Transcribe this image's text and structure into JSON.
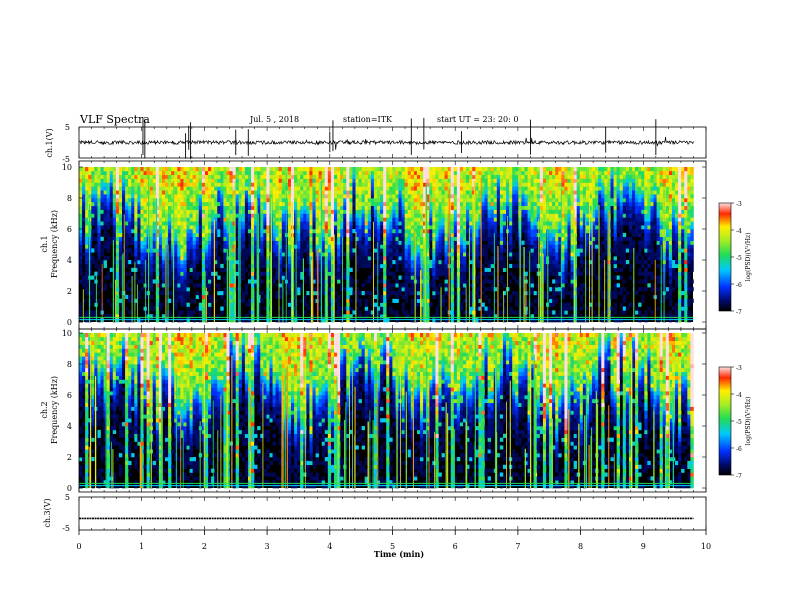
{
  "header": {
    "title": "VLF Spectra",
    "date": "Jul. 5 , 2018",
    "station": "station=ITK",
    "start": "start UT = 23: 20: 0"
  },
  "colorbar": {
    "label": "log(PSD)(V²/Hz)",
    "ticks": [
      "-3",
      "-4",
      "-5",
      "-6",
      "-7"
    ]
  },
  "chart_data": [
    {
      "type": "line",
      "panel": "ch1-waveform",
      "ylabel": "ch.1(V)",
      "yticks": [
        "5",
        "-5"
      ],
      "ylim": [
        -5,
        5
      ],
      "baseline": 0,
      "noise_amplitude": 0.6
    },
    {
      "type": "heatmap",
      "panel": "ch1-spectrogram",
      "ylabel_top": "ch.1",
      "ylabel": "Frequency (kHz)",
      "yticks": [
        "0",
        "2",
        "4",
        "6",
        "8",
        "10"
      ],
      "ylim": [
        0,
        10
      ],
      "xlim": [
        0,
        10
      ],
      "color_range": [
        -7,
        -3
      ]
    },
    {
      "type": "heatmap",
      "panel": "ch2-spectrogram",
      "ylabel_top": "ch.2",
      "ylabel": "Frequency (kHz)",
      "yticks": [
        "0",
        "2",
        "4",
        "6",
        "8",
        "10"
      ],
      "ylim": [
        0,
        10
      ],
      "xlim": [
        0,
        10
      ],
      "color_range": [
        -7,
        -3
      ]
    },
    {
      "type": "line",
      "panel": "ch3-waveform",
      "ylabel": "ch.3(V)",
      "yticks": [
        "5",
        "-5"
      ],
      "ylim": [
        -5,
        5
      ],
      "baseline": -1.5
    }
  ],
  "xaxis": {
    "label": "Time (min)",
    "ticks": [
      "0",
      "1",
      "2",
      "3",
      "4",
      "5",
      "6",
      "7",
      "8",
      "9",
      "10"
    ],
    "range": [
      0,
      10
    ]
  }
}
